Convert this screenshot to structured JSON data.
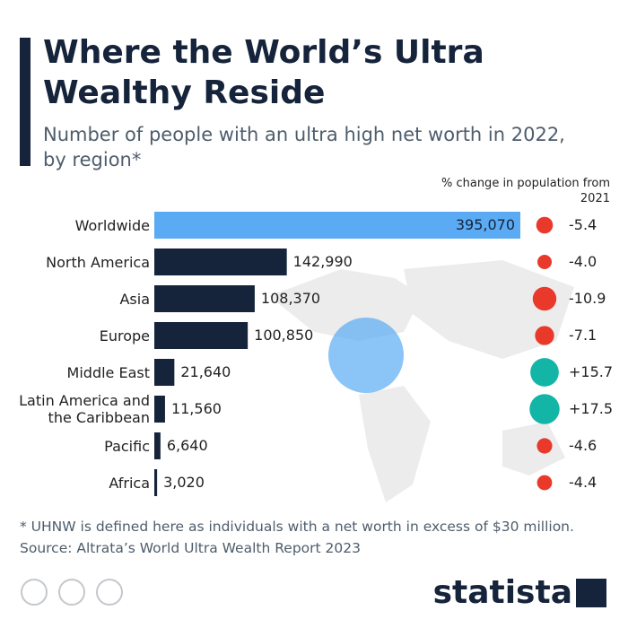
{
  "chart_data": {
    "type": "bar",
    "title": "Where the World’s Ultra Wealthy Reside",
    "subtitle": "Number of people with an ultra high net worth in 2022, by region*",
    "categories": [
      "Worldwide",
      "North America",
      "Asia",
      "Europe",
      "Middle East",
      "Latin America and the Caribbean",
      "Pacific",
      "Africa"
    ],
    "values": [
      395070,
      142990,
      108370,
      100850,
      21640,
      11560,
      6640,
      3020
    ],
    "value_labels": [
      "395,070",
      "142,990",
      "108,370",
      "100,850",
      "21,640",
      "11,560",
      "6,640",
      "3,020"
    ],
    "colors": [
      "#5aabf3",
      "#15233b",
      "#15233b",
      "#15233b",
      "#15233b",
      "#15233b",
      "#15233b",
      "#15233b"
    ],
    "change": {
      "title": "% change in population from 2021",
      "values": [
        -5.4,
        -4.0,
        -10.9,
        -7.1,
        15.7,
        17.5,
        -4.6,
        -4.4
      ],
      "value_labels": [
        "-5.4",
        "-4.0",
        "-10.9",
        "-7.1",
        "+15.7",
        "+17.5",
        "-4.6",
        "-4.4"
      ],
      "negative_color": "#e8392b",
      "positive_color": "#13b5a6"
    },
    "note": "* UHNW is defined here as individuals with a net worth in excess of $30 million.",
    "source": "Source: Altrata’s World Ultra Wealth Report 2023",
    "brand": "statista"
  }
}
